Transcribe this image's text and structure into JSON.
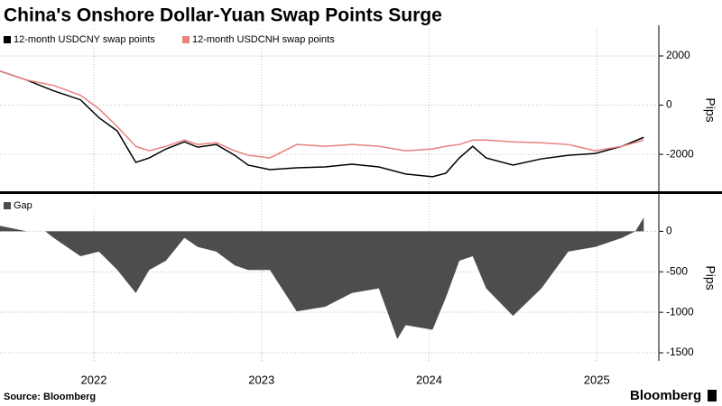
{
  "title": "China's Onshore Dollar-Yuan Swap Points Surge",
  "source": "Source: Bloomberg",
  "logo": "Bloomberg",
  "chart_data": [
    {
      "type": "line",
      "y_label": "Pips",
      "legend": "top-left",
      "grid": true,
      "x": [
        2021.44,
        2021.6,
        2021.76,
        2021.92,
        2022.03,
        2022.14,
        2022.25,
        2022.33,
        2022.43,
        2022.54,
        2022.62,
        2022.73,
        2022.84,
        2022.92,
        2023.05,
        2023.21,
        2023.38,
        2023.54,
        2023.7,
        2023.86,
        2024.02,
        2024.1,
        2024.18,
        2024.26,
        2024.34,
        2024.5,
        2024.67,
        2024.83,
        2024.99,
        2025.15,
        2025.28
      ],
      "series": [
        {
          "name": "12-month USDCNY swap points",
          "color": "#000000",
          "values": [
            1382,
            1018,
            582,
            218,
            -509,
            -1055,
            -2327,
            -2145,
            -1782,
            -1491,
            -1709,
            -1600,
            -2036,
            -2436,
            -2618,
            -2545,
            -2509,
            -2400,
            -2509,
            -2800,
            -2909,
            -2764,
            -2145,
            -1673,
            -2145,
            -2436,
            -2182,
            -2036,
            -1964,
            -1673,
            -1309
          ]
        },
        {
          "name": "12-month USDCNH swap points",
          "color": "#e8827f",
          "values": [
            1382,
            1018,
            800,
            400,
            -145,
            -873,
            -1673,
            -1855,
            -1673,
            -1418,
            -1600,
            -1527,
            -1855,
            -2036,
            -2145,
            -1600,
            -1673,
            -1600,
            -1673,
            -1855,
            -1782,
            -1673,
            -1600,
            -1418,
            -1418,
            -1491,
            -1527,
            -1600,
            -1855,
            -1673,
            -1418
          ]
        }
      ],
      "xlim": [
        2021.44,
        2025.37
      ],
      "xticks": [
        2022,
        2023,
        2024,
        2025
      ],
      "ylim": [
        -3500,
        3100
      ],
      "yticks": [
        2000,
        0,
        -2000
      ]
    },
    {
      "type": "area",
      "y_label": "Pips",
      "legend": "top-left",
      "grid": true,
      "x": [
        2021.44,
        2021.6,
        2021.71,
        2021.76,
        2021.92,
        2022.03,
        2022.14,
        2022.25,
        2022.33,
        2022.43,
        2022.54,
        2022.62,
        2022.73,
        2022.84,
        2022.92,
        2023.05,
        2023.21,
        2023.38,
        2023.54,
        2023.7,
        2023.81,
        2023.86,
        2024.02,
        2024.1,
        2024.18,
        2024.26,
        2024.34,
        2024.5,
        2024.67,
        2024.83,
        2024.99,
        2025.15,
        2025.23,
        2025.28
      ],
      "series": [
        {
          "name": "Gap",
          "color": "#4d4d4d",
          "values": [
            68,
            0,
            0,
            -80,
            -307,
            -250,
            -477,
            -761,
            -477,
            -364,
            -80,
            -193,
            -250,
            -420,
            -477,
            -477,
            -989,
            -932,
            -761,
            -705,
            -1330,
            -1159,
            -1216,
            -818,
            -364,
            -307,
            -705,
            -1045,
            -705,
            -250,
            -193,
            -80,
            0,
            170
          ]
        }
      ],
      "xlim": [
        2021.44,
        2025.37
      ],
      "xticks": [
        2022,
        2023,
        2024,
        2025
      ],
      "ylim": [
        -1600,
        450
      ],
      "yticks": [
        0,
        -500,
        -1000,
        -1500
      ]
    }
  ]
}
